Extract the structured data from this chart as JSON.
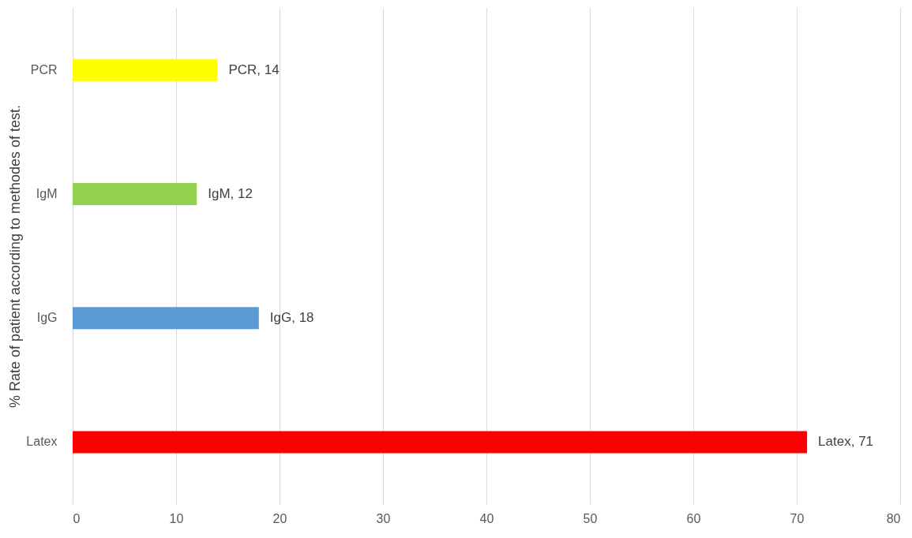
{
  "chart_data": {
    "type": "bar",
    "orientation": "horizontal",
    "ylabel": "% Rate of patient according to methodes of test.",
    "categories": [
      "PCR",
      "IgM",
      "IgG",
      "Latex"
    ],
    "values": [
      14,
      12,
      18,
      71
    ],
    "colors": [
      "#ffff00",
      "#92d050",
      "#5b9bd5",
      "#ff0000"
    ],
    "value_labels": [
      "PCR, 14",
      "IgM, 12",
      "IgG, 18",
      "Latex, 71"
    ],
    "xlim": [
      0,
      80
    ],
    "xticks": [
      0,
      10,
      20,
      30,
      40,
      50,
      60,
      70,
      80
    ],
    "grid": "x"
  }
}
